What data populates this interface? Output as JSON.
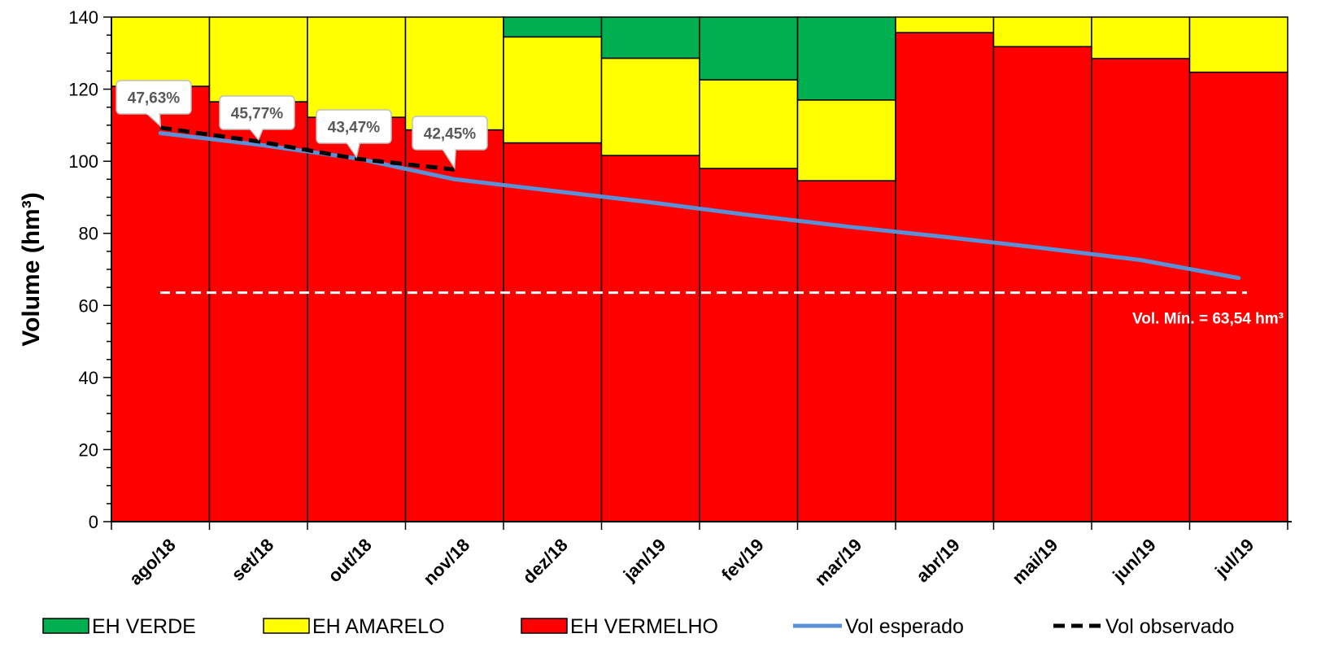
{
  "chart_data": {
    "type": "bar",
    "stacked": true,
    "categories": [
      "ago/18",
      "set/18",
      "out/18",
      "nov/18",
      "dez/18",
      "jan/19",
      "fev/19",
      "mar/19",
      "abr/19",
      "mai/19",
      "jun/19",
      "jul/19"
    ],
    "series": [
      {
        "name": "EH VERDE",
        "color": "#00b050",
        "values": [
          0,
          0,
          0,
          0,
          5.5,
          11.4,
          17.4,
          23.0,
          0,
          0,
          0,
          0
        ]
      },
      {
        "name": "EH AMARELO",
        "color": "#ffff00",
        "values": [
          19.2,
          23.5,
          27.8,
          31.3,
          29.4,
          27.0,
          24.6,
          22.4,
          4.3,
          8.2,
          11.5,
          15.3
        ]
      },
      {
        "name": "EH VERMELHO",
        "color": "#ff0000",
        "values": [
          120.8,
          116.5,
          112.2,
          108.7,
          105.1,
          101.6,
          98.0,
          94.6,
          135.7,
          131.8,
          128.5,
          124.7
        ]
      }
    ],
    "lines": [
      {
        "name": "Vol esperado",
        "color": "#5b8fd6",
        "style": "solid",
        "values": [
          107.8,
          104.6,
          100.8,
          95.0,
          91.8,
          88.6,
          85.1,
          81.9,
          79.0,
          75.9,
          72.6,
          67.6
        ]
      },
      {
        "name": "Vol observado",
        "color": "#000000",
        "style": "dashed",
        "values": [
          109.3,
          105.5,
          100.7,
          97.7
        ]
      }
    ],
    "callouts": [
      {
        "label": "47,63%",
        "index": 0
      },
      {
        "label": "45,77%",
        "index": 1
      },
      {
        "label": "43,47%",
        "index": 2
      },
      {
        "label": "42,45%",
        "index": 3
      }
    ],
    "reference_line": {
      "value": 63.54,
      "label": "Vol. Mín. = 63,54 hm³",
      "color": "#ffffff",
      "style": "dashed"
    },
    "ylabel": "Volume (hm³)",
    "xlabel": "",
    "ylim": [
      0,
      140
    ],
    "yticks": [
      0,
      20,
      40,
      60,
      80,
      100,
      120,
      140
    ],
    "grid": false,
    "legend_position": "bottom"
  }
}
